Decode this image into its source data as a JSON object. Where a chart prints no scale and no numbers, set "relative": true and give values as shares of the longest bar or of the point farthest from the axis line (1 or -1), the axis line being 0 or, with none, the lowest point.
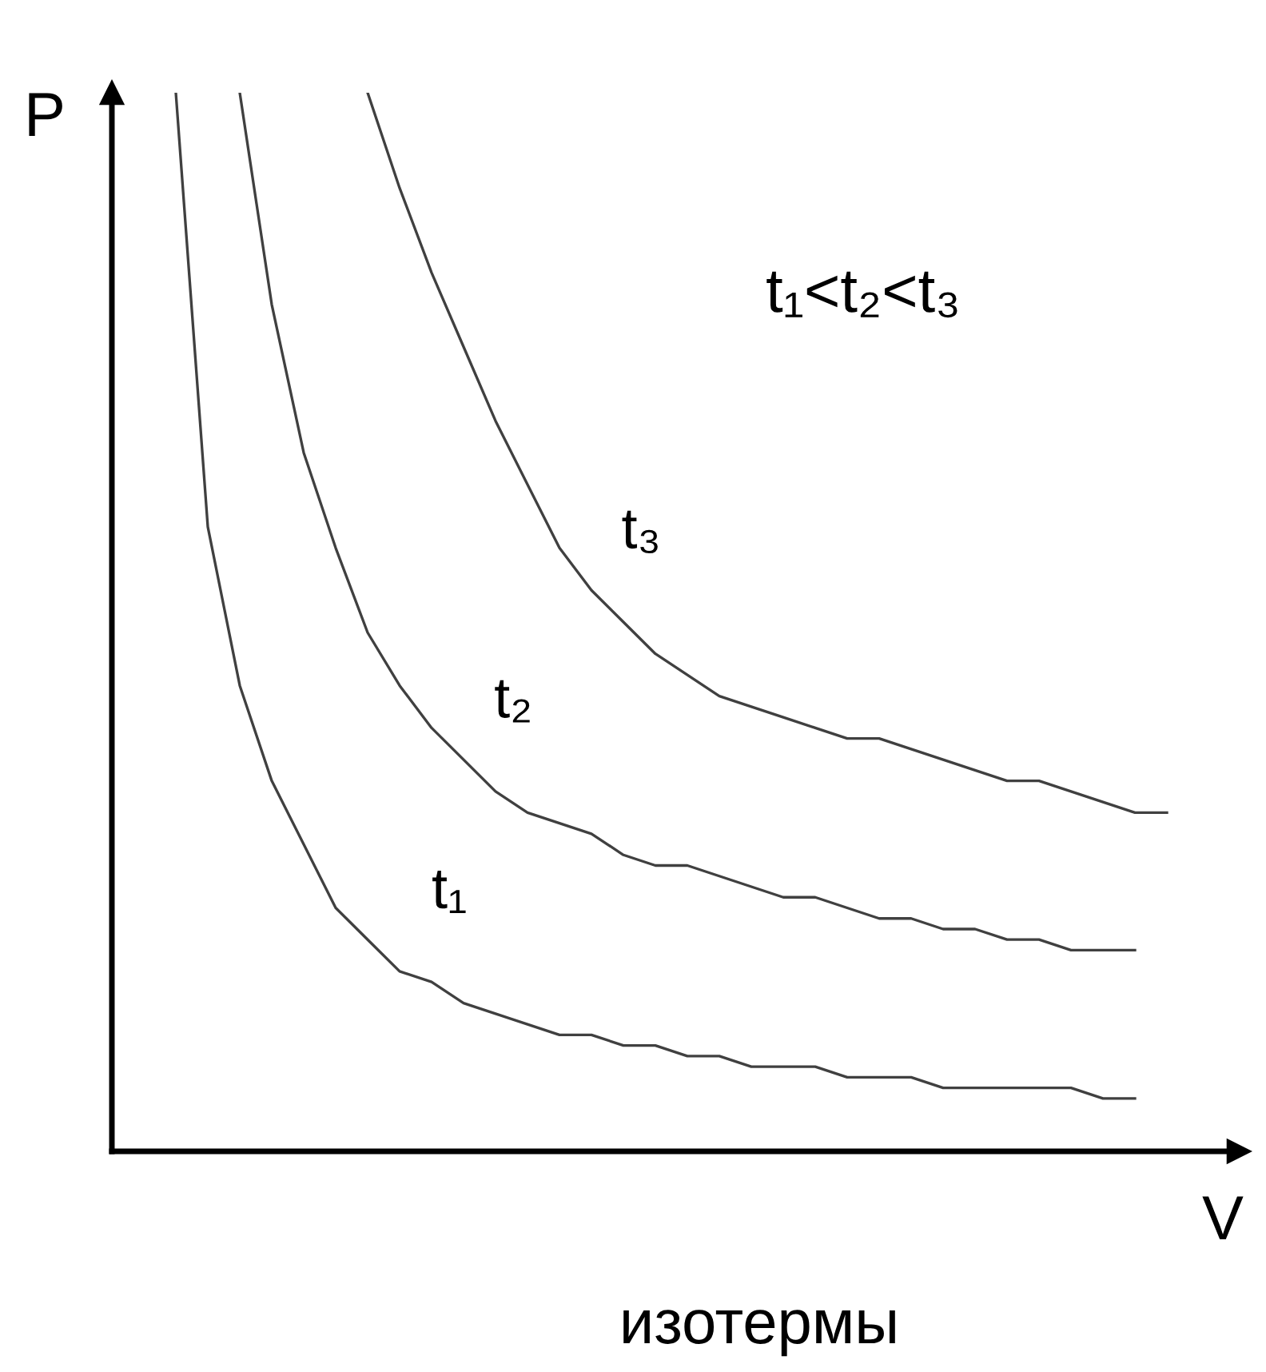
{
  "chart_data": {
    "type": "line",
    "relative": true,
    "xlabel": "V",
    "ylabel": "P",
    "annotations": [
      "t₁<t₂<t₃",
      "изотермы"
    ],
    "categories": [
      null,
      null,
      null,
      null,
      null,
      null,
      null,
      null,
      null,
      null,
      null,
      null,
      null,
      null,
      null,
      null,
      null,
      null,
      null,
      null,
      null,
      null,
      null,
      null,
      null,
      null,
      null,
      null,
      null,
      null,
      null,
      null
    ],
    "series": [
      {
        "name": "t₁",
        "color": "#404040",
        "values": [
          1.0,
          0.59,
          0.44,
          0.35,
          0.29,
          0.23,
          0.2,
          0.17,
          0.16,
          0.14,
          0.13,
          0.12,
          0.11,
          0.11,
          0.1,
          0.1,
          0.09,
          0.09,
          0.08,
          0.08,
          0.08,
          0.07,
          0.07,
          0.07,
          0.06,
          0.06,
          0.06,
          0.06,
          0.06,
          0.05,
          0.05,
          null
        ]
      },
      {
        "name": "t₂",
        "color": "#404040",
        "values": [
          null,
          null,
          1.0,
          0.8,
          0.66,
          0.57,
          0.49,
          0.44,
          0.4,
          0.37,
          0.34,
          0.32,
          0.31,
          0.3,
          0.28,
          0.27,
          0.27,
          0.26,
          0.25,
          0.24,
          0.24,
          0.23,
          0.22,
          0.22,
          0.21,
          0.21,
          0.2,
          0.2,
          0.19,
          0.19,
          0.19,
          null
        ]
      },
      {
        "name": "t₃",
        "color": "#404040",
        "values": [
          null,
          null,
          null,
          null,
          null,
          null,
          1.0,
          0.91,
          0.83,
          0.76,
          0.69,
          0.63,
          0.57,
          0.53,
          0.5,
          0.47,
          0.45,
          0.43,
          0.42,
          0.41,
          0.4,
          0.39,
          0.39,
          0.38,
          0.37,
          0.36,
          0.35,
          0.35,
          0.34,
          0.33,
          0.32,
          0.32
        ]
      }
    ],
    "legend": false,
    "marker": "none",
    "line_style": "solid"
  }
}
